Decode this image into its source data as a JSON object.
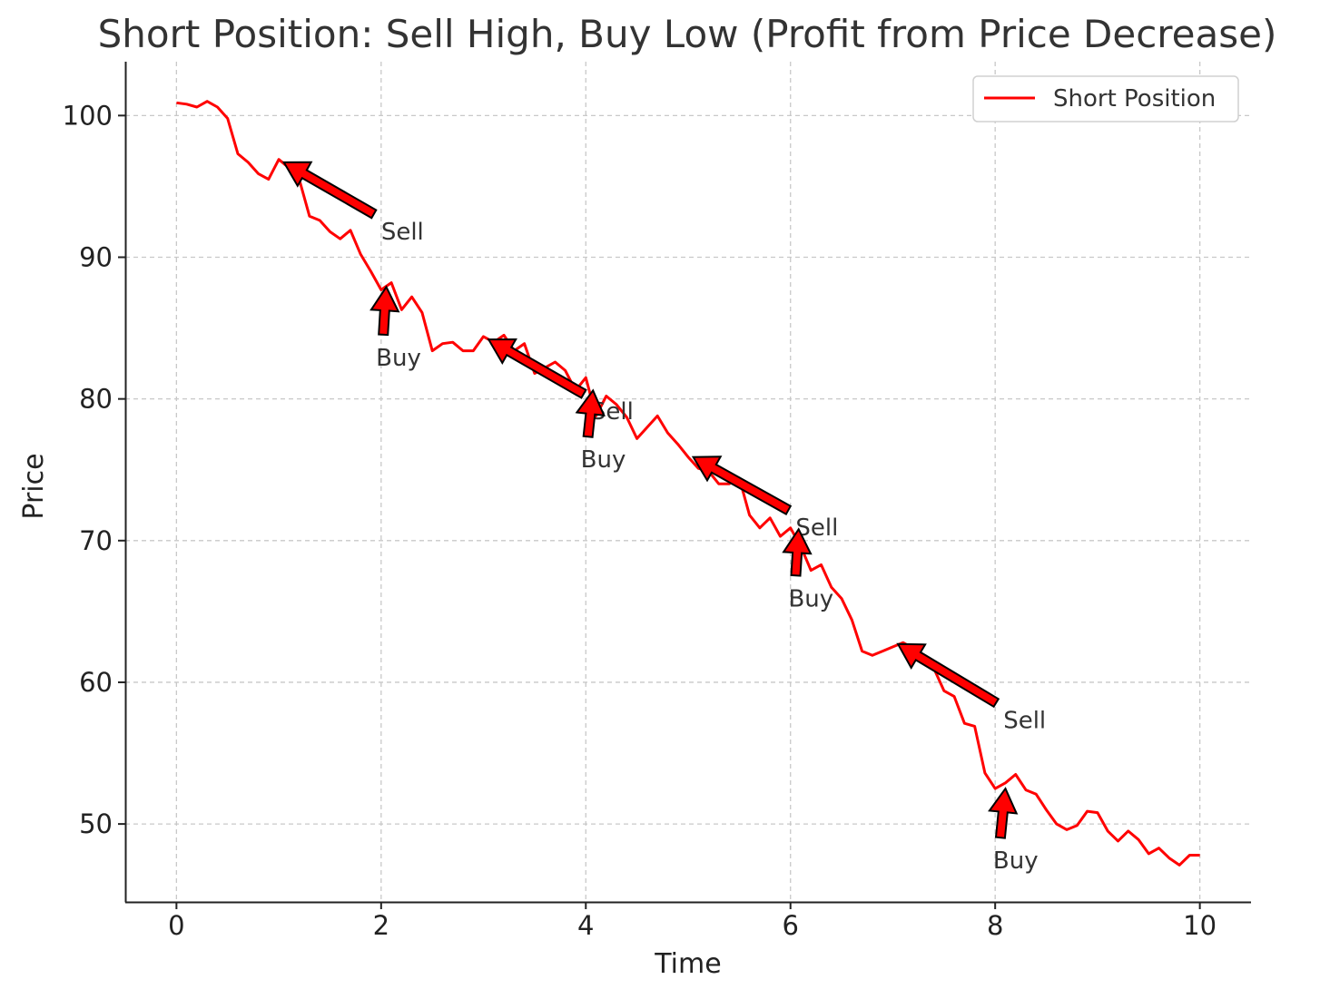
{
  "chart_data": {
    "type": "line",
    "title": "Short Position: Sell High, Buy Low (Profit from Price Decrease)",
    "xlabel": "Time",
    "ylabel": "Price",
    "xlim": [
      -0.5,
      10.5
    ],
    "ylim": [
      44.5,
      103.8
    ],
    "xticks": [
      0,
      2,
      4,
      6,
      8,
      10
    ],
    "yticks": [
      50,
      60,
      70,
      80,
      90,
      100
    ],
    "grid": true,
    "legend": {
      "position": "top-right",
      "entries": [
        "Short Position"
      ]
    },
    "series": [
      {
        "name": "Short Position",
        "color": "#ff0000",
        "x": [
          0,
          0.1,
          0.2,
          0.3,
          0.4,
          0.5,
          0.6,
          0.7,
          0.8,
          0.9,
          1.0,
          1.1,
          1.2,
          1.3,
          1.4,
          1.5,
          1.6,
          1.7,
          1.8,
          1.9,
          2.0,
          2.1,
          2.2,
          2.3,
          2.4,
          2.5,
          2.6,
          2.7,
          2.8,
          2.9,
          3.0,
          3.1,
          3.2,
          3.3,
          3.4,
          3.5,
          3.6,
          3.7,
          3.8,
          3.9,
          4.0,
          4.1,
          4.2,
          4.3,
          4.4,
          4.5,
          4.6,
          4.7,
          4.8,
          4.9,
          5.0,
          5.1,
          5.2,
          5.3,
          5.4,
          5.5,
          5.6,
          5.7,
          5.8,
          5.9,
          6.0,
          6.1,
          6.2,
          6.3,
          6.4,
          6.5,
          6.6,
          6.7,
          6.8,
          6.9,
          7.0,
          7.1,
          7.2,
          7.3,
          7.4,
          7.5,
          7.6,
          7.7,
          7.8,
          7.9,
          8.0,
          8.1,
          8.2,
          8.3,
          8.4,
          8.5,
          8.6,
          8.7,
          8.8,
          8.9,
          9.0,
          9.1,
          9.2,
          9.3,
          9.4,
          9.5,
          9.6,
          9.7,
          9.8,
          9.9,
          10.0
        ],
        "y": [
          100.9,
          100.8,
          100.6,
          101.0,
          100.6,
          99.8,
          97.3,
          96.7,
          95.9,
          95.5,
          96.9,
          96.3,
          95.5,
          92.9,
          92.6,
          91.8,
          91.3,
          91.9,
          90.2,
          89.0,
          87.7,
          88.2,
          86.3,
          87.2,
          86.1,
          83.4,
          83.9,
          84.0,
          83.4,
          83.4,
          84.4,
          84.0,
          84.5,
          83.4,
          83.9,
          81.8,
          82.2,
          82.6,
          82.0,
          80.6,
          81.5,
          78.8,
          80.2,
          79.6,
          78.7,
          77.2,
          78.0,
          78.8,
          77.6,
          76.8,
          75.9,
          75.1,
          74.9,
          74.0,
          74.0,
          74.4,
          71.8,
          70.9,
          71.6,
          70.3,
          70.9,
          69.6,
          67.9,
          68.3,
          66.7,
          65.9,
          64.4,
          62.2,
          61.9,
          62.2,
          62.5,
          62.8,
          62.4,
          61.6,
          61.0,
          59.4,
          59.0,
          57.1,
          56.9,
          53.6,
          52.5,
          52.9,
          53.5,
          52.4,
          52.1,
          51.0,
          50.0,
          49.6,
          49.9,
          50.9,
          50.8,
          49.5,
          48.8,
          49.5,
          48.9,
          47.9,
          48.3,
          47.6,
          47.1,
          47.8,
          47.8
        ]
      }
    ],
    "annotations": [
      {
        "label": "Sell",
        "text_at": [
          2.0,
          91.9
        ],
        "points_to": [
          1.05,
          96.7
        ]
      },
      {
        "label": "Buy",
        "text_at": [
          1.95,
          83.0
        ],
        "points_to": [
          2.05,
          87.9
        ]
      },
      {
        "label": "Sell",
        "text_at": [
          4.05,
          79.2
        ],
        "points_to": [
          3.05,
          84.2
        ]
      },
      {
        "label": "Buy",
        "text_at": [
          3.95,
          75.8
        ],
        "points_to": [
          4.07,
          80.6
        ]
      },
      {
        "label": "Sell",
        "text_at": [
          6.05,
          71.0
        ],
        "points_to": [
          5.05,
          75.9
        ]
      },
      {
        "label": "Buy",
        "text_at": [
          5.98,
          66.0
        ],
        "points_to": [
          6.08,
          70.8
        ]
      },
      {
        "label": "Sell",
        "text_at": [
          8.08,
          57.4
        ],
        "points_to": [
          7.05,
          62.7
        ]
      },
      {
        "label": "Buy",
        "text_at": [
          7.98,
          47.5
        ],
        "points_to": [
          8.1,
          52.5
        ]
      }
    ]
  }
}
